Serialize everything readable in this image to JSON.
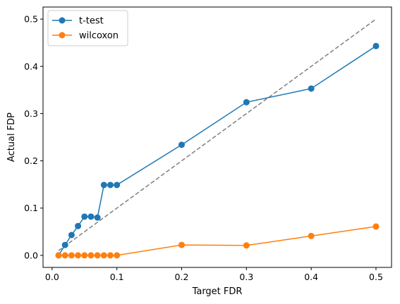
{
  "chart_data": {
    "type": "line",
    "xlabel": "Target FDR",
    "ylabel": "Actual FDP",
    "xlim": [
      -0.014,
      0.524
    ],
    "ylim": [
      -0.0255,
      0.5255
    ],
    "xticks": [
      0.0,
      0.1,
      0.2,
      0.3,
      0.4,
      0.5
    ],
    "xtick_labels": [
      "0.0",
      "0.1",
      "0.2",
      "0.3",
      "0.4",
      "0.5"
    ],
    "yticks": [
      0.0,
      0.1,
      0.2,
      0.3,
      0.4,
      0.5
    ],
    "ytick_labels": [
      "0.0",
      "0.1",
      "0.2",
      "0.3",
      "0.4",
      "0.5"
    ],
    "grid": false,
    "legend_position": "top-left",
    "reference_line": {
      "style": "dashed",
      "color": "#7f7f7f",
      "x": [
        0.01,
        0.5
      ],
      "y": [
        0.01,
        0.5
      ]
    },
    "x": [
      0.01,
      0.02,
      0.03,
      0.04,
      0.05,
      0.06,
      0.07,
      0.08,
      0.09,
      0.1,
      0.2,
      0.3,
      0.4,
      0.5
    ],
    "series": [
      {
        "name": "t-test",
        "color": "#1f77b4",
        "values": [
          0.0,
          0.022,
          0.043,
          0.062,
          0.082,
          0.082,
          0.08,
          0.149,
          0.149,
          0.149,
          0.234,
          0.324,
          0.353,
          0.443
        ]
      },
      {
        "name": "wilcoxon",
        "color": "#ff7f0e",
        "values": [
          0.0,
          0.0,
          0.0,
          0.0,
          0.0,
          0.0,
          0.0,
          0.0,
          0.0,
          0.0,
          0.022,
          0.021,
          0.041,
          0.061
        ]
      }
    ]
  }
}
